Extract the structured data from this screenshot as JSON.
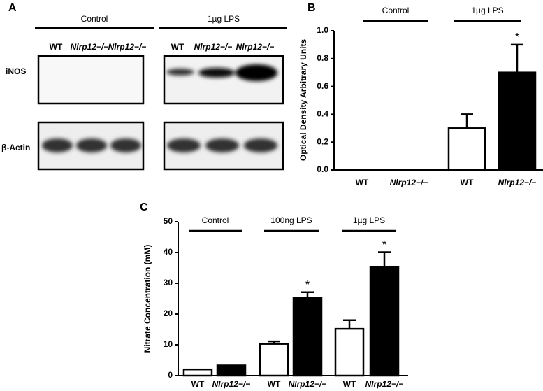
{
  "panel_a": {
    "letter": "A",
    "group_labels": [
      "Control",
      "1µg LPS"
    ],
    "lanes": [
      "WT",
      "Nlrp12−/−",
      "Nlrp12−/−",
      "WT",
      "Nlrp12−/−",
      "Nlrp12−/−"
    ],
    "rows": [
      "iNOS",
      "β-Actin"
    ]
  },
  "chart_data": [
    {
      "type": "bar",
      "letter": "B",
      "ylabel": "Optical Density Arbitrary Units",
      "group_labels": [
        "Control",
        "1µg LPS"
      ],
      "categories": [
        "WT",
        "Nlrp12−/−",
        "WT",
        "Nlrp12−/−"
      ],
      "values": [
        0,
        0,
        0.3,
        0.7
      ],
      "errors": [
        null,
        null,
        0.1,
        0.2
      ],
      "colors": [
        "#ffffff",
        "#000000",
        "#ffffff",
        "#000000"
      ],
      "significance": [
        null,
        null,
        null,
        "*"
      ],
      "ylim": [
        0,
        1
      ],
      "yticks": [
        {
          "value": 0,
          "label": "0.0"
        },
        0.2,
        0.4,
        0.6,
        0.8,
        {
          "value": 1,
          "label": "1.0"
        }
      ]
    },
    {
      "type": "bar",
      "letter": "C",
      "ylabel": "Nitrate Concentration (mM)",
      "group_labels": [
        "Control",
        "100ng LPS",
        "1µg LPS"
      ],
      "categories": [
        "WT",
        "Nlrp12−/−",
        "WT",
        "Nlrp12−/−",
        "WT",
        "Nlrp12−/−"
      ],
      "values": [
        2,
        3.3,
        10.3,
        25.3,
        15.2,
        35.4
      ],
      "errors": [
        null,
        null,
        0.8,
        1.8,
        2.8,
        4.7
      ],
      "colors": [
        "#ffffff",
        "#000000",
        "#ffffff",
        "#000000",
        "#ffffff",
        "#000000"
      ],
      "significance": [
        null,
        null,
        null,
        "*",
        null,
        "*"
      ],
      "ylim": [
        0,
        50
      ],
      "yticks": [
        0,
        10,
        20,
        30,
        40,
        50
      ]
    }
  ]
}
